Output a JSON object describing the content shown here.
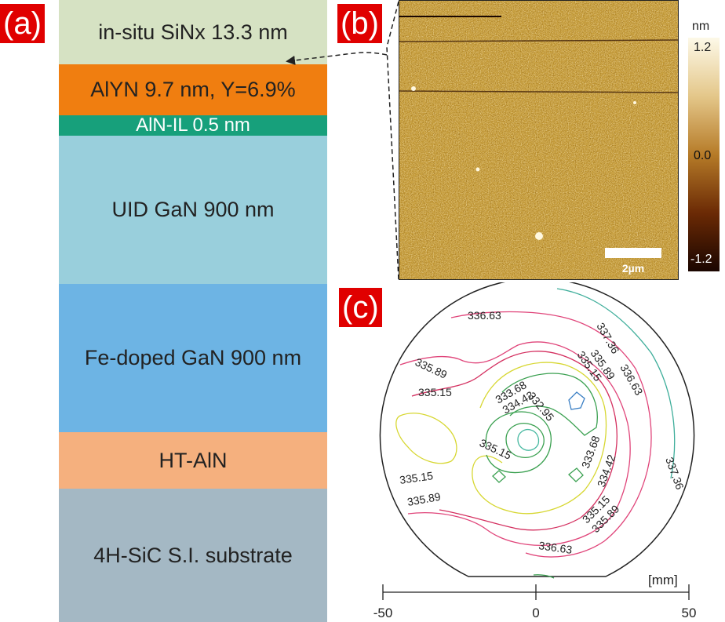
{
  "panels": {
    "a": "(a)",
    "b": "(b)",
    "c": "(c)"
  },
  "stack": [
    {
      "label": "in-situ SiNx 13.3 nm",
      "color": "#d6e2c3"
    },
    {
      "label": "AlYN 9.7 nm, Y=6.9%",
      "color": "#f07e10"
    },
    {
      "label": "AlN-IL 0.5 nm",
      "color": "#17a07b",
      "text_color": "#ffffff"
    },
    {
      "label": "UID GaN 900 nm",
      "color": "#99cfdc"
    },
    {
      "label": "Fe-doped GaN 900 nm",
      "color": "#6db4e4"
    },
    {
      "label": "HT-AlN",
      "color": "#f5b07e"
    },
    {
      "label": "4H-SiC S.I. substrate",
      "color": "#a4b8c4"
    }
  ],
  "afm": {
    "scale_bar": "2µm",
    "colorbar": {
      "unit": "nm",
      "max": "1.2",
      "mid": "0.0",
      "min": "-1.2",
      "low_color": "#1a0500",
      "high_color": "#fdf9e8"
    }
  },
  "wafer_map": {
    "unit": "[mm]",
    "axis_ticks": [
      "-50",
      "0",
      "50"
    ],
    "contour_labels": [
      "336.63",
      "337.36",
      "335.89",
      "335.15",
      "335.89",
      "336.63",
      "335.15",
      "333.68",
      "332.95",
      "334.42",
      "335.15",
      "333.68",
      "334.42",
      "337.36",
      "335.15",
      "335.15",
      "335.89",
      "335.89",
      "336.63"
    ]
  }
}
